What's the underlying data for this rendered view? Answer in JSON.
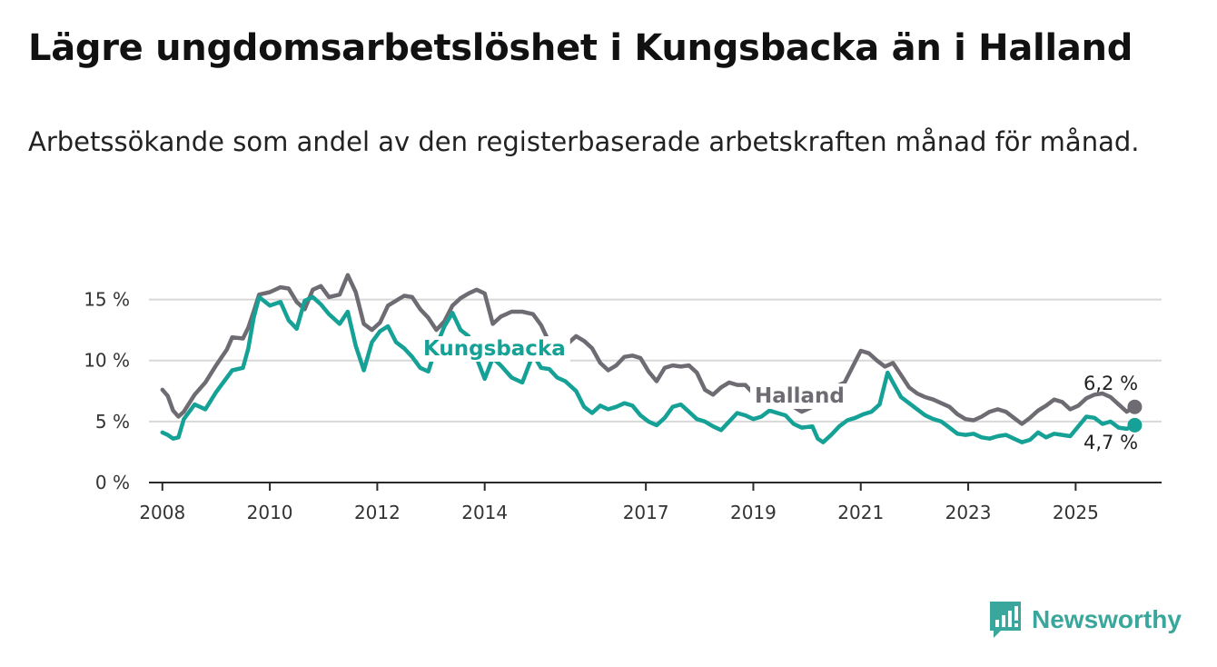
{
  "title": "Lägre ungdomsarbetslöshet i Kungsbacka än i Halland",
  "subtitle": "Arbetssökande som andel av den registerbaserade arbetskraften månad för månad.",
  "brand": {
    "name": "Newsworthy",
    "icon": "newsworthy-chart-icon",
    "color": "#3aa79c"
  },
  "chart_data": {
    "type": "line",
    "ylim": [
      0,
      17.5
    ],
    "y_ticks": [
      0,
      5,
      10,
      15
    ],
    "y_tick_labels": [
      "0 %",
      "5 %",
      "10 %",
      "15 %"
    ],
    "x_ticks": [
      2008,
      2010,
      2012,
      2014,
      2017,
      2019,
      2021,
      2023,
      2025
    ],
    "x_tick_labels": [
      "2008",
      "2010",
      "2012",
      "2014",
      "2017",
      "2019",
      "2021",
      "2023",
      "2025"
    ],
    "grid": true,
    "end_labels": {
      "halland": "6,2 %",
      "kungsbacka": "4,7 %"
    },
    "series": [
      {
        "name": "Halland",
        "color": "#6e6c72",
        "points": [
          [
            2008.0,
            7.6
          ],
          [
            2008.1,
            7.1
          ],
          [
            2008.2,
            5.9
          ],
          [
            2008.3,
            5.4
          ],
          [
            2008.4,
            5.8
          ],
          [
            2008.6,
            7.2
          ],
          [
            2008.8,
            8.2
          ],
          [
            2009.0,
            9.6
          ],
          [
            2009.2,
            10.9
          ],
          [
            2009.3,
            11.9
          ],
          [
            2009.5,
            11.8
          ],
          [
            2009.6,
            12.7
          ],
          [
            2009.7,
            14.0
          ],
          [
            2009.8,
            15.4
          ],
          [
            2010.0,
            15.6
          ],
          [
            2010.2,
            16.0
          ],
          [
            2010.35,
            15.9
          ],
          [
            2010.5,
            14.8
          ],
          [
            2010.65,
            14.2
          ],
          [
            2010.8,
            15.8
          ],
          [
            2010.95,
            16.1
          ],
          [
            2011.1,
            15.2
          ],
          [
            2011.3,
            15.4
          ],
          [
            2011.45,
            17.0
          ],
          [
            2011.6,
            15.6
          ],
          [
            2011.75,
            13.0
          ],
          [
            2011.9,
            12.5
          ],
          [
            2012.05,
            13.1
          ],
          [
            2012.2,
            14.5
          ],
          [
            2012.35,
            14.9
          ],
          [
            2012.5,
            15.3
          ],
          [
            2012.65,
            15.2
          ],
          [
            2012.8,
            14.2
          ],
          [
            2012.95,
            13.5
          ],
          [
            2013.1,
            12.5
          ],
          [
            2013.25,
            13.2
          ],
          [
            2013.4,
            14.5
          ],
          [
            2013.55,
            15.1
          ],
          [
            2013.7,
            15.5
          ],
          [
            2013.85,
            15.8
          ],
          [
            2014.0,
            15.5
          ],
          [
            2014.15,
            13.0
          ],
          [
            2014.3,
            13.6
          ],
          [
            2014.5,
            14.0
          ],
          [
            2014.7,
            14.0
          ],
          [
            2014.9,
            13.8
          ],
          [
            2015.05,
            12.9
          ],
          [
            2015.2,
            11.5
          ],
          [
            2015.35,
            10.8
          ],
          [
            2015.5,
            11.2
          ],
          [
            2015.7,
            12.0
          ],
          [
            2015.85,
            11.6
          ],
          [
            2016.0,
            11.0
          ],
          [
            2016.15,
            9.8
          ],
          [
            2016.3,
            9.2
          ],
          [
            2016.45,
            9.6
          ],
          [
            2016.6,
            10.3
          ],
          [
            2016.75,
            10.4
          ],
          [
            2016.9,
            10.2
          ],
          [
            2017.05,
            9.1
          ],
          [
            2017.2,
            8.3
          ],
          [
            2017.35,
            9.4
          ],
          [
            2017.5,
            9.6
          ],
          [
            2017.65,
            9.5
          ],
          [
            2017.8,
            9.6
          ],
          [
            2017.95,
            9.0
          ],
          [
            2018.1,
            7.6
          ],
          [
            2018.25,
            7.2
          ],
          [
            2018.4,
            7.8
          ],
          [
            2018.55,
            8.2
          ],
          [
            2018.7,
            8.0
          ],
          [
            2018.85,
            8.0
          ],
          [
            2019.0,
            7.3
          ],
          [
            2019.15,
            7.1
          ],
          [
            2019.3,
            6.6
          ],
          [
            2019.45,
            6.8
          ],
          [
            2019.6,
            6.5
          ],
          [
            2019.75,
            6.2
          ],
          [
            2019.9,
            5.8
          ],
          [
            2020.1,
            6.2
          ],
          [
            2020.3,
            7.0
          ],
          [
            2020.5,
            7.8
          ],
          [
            2020.7,
            8.2
          ],
          [
            2020.85,
            9.5
          ],
          [
            2021.0,
            10.8
          ],
          [
            2021.15,
            10.6
          ],
          [
            2021.3,
            10.0
          ],
          [
            2021.45,
            9.5
          ],
          [
            2021.6,
            9.8
          ],
          [
            2021.75,
            8.8
          ],
          [
            2021.9,
            7.8
          ],
          [
            2022.05,
            7.3
          ],
          [
            2022.2,
            7.0
          ],
          [
            2022.35,
            6.8
          ],
          [
            2022.5,
            6.5
          ],
          [
            2022.65,
            6.2
          ],
          [
            2022.8,
            5.6
          ],
          [
            2022.95,
            5.2
          ],
          [
            2023.1,
            5.1
          ],
          [
            2023.25,
            5.4
          ],
          [
            2023.4,
            5.8
          ],
          [
            2023.55,
            6.0
          ],
          [
            2023.7,
            5.8
          ],
          [
            2023.85,
            5.3
          ],
          [
            2024.0,
            4.8
          ],
          [
            2024.15,
            5.3
          ],
          [
            2024.3,
            5.9
          ],
          [
            2024.45,
            6.3
          ],
          [
            2024.6,
            6.8
          ],
          [
            2024.75,
            6.6
          ],
          [
            2024.9,
            6.0
          ],
          [
            2025.05,
            6.3
          ],
          [
            2025.2,
            6.9
          ],
          [
            2025.35,
            7.2
          ],
          [
            2025.5,
            7.3
          ],
          [
            2025.65,
            7.0
          ],
          [
            2025.8,
            6.4
          ],
          [
            2025.95,
            5.8
          ],
          [
            2026.1,
            6.2
          ]
        ]
      },
      {
        "name": "Kungsbacka",
        "color": "#15a196",
        "points": [
          [
            2008.0,
            4.1
          ],
          [
            2008.1,
            3.9
          ],
          [
            2008.2,
            3.6
          ],
          [
            2008.3,
            3.7
          ],
          [
            2008.4,
            5.2
          ],
          [
            2008.6,
            6.4
          ],
          [
            2008.8,
            6.0
          ],
          [
            2009.0,
            7.4
          ],
          [
            2009.2,
            8.6
          ],
          [
            2009.3,
            9.2
          ],
          [
            2009.5,
            9.4
          ],
          [
            2009.6,
            11.0
          ],
          [
            2009.7,
            13.5
          ],
          [
            2009.8,
            15.2
          ],
          [
            2010.0,
            14.5
          ],
          [
            2010.2,
            14.8
          ],
          [
            2010.35,
            13.3
          ],
          [
            2010.5,
            12.6
          ],
          [
            2010.65,
            14.9
          ],
          [
            2010.8,
            15.2
          ],
          [
            2010.95,
            14.6
          ],
          [
            2011.1,
            13.8
          ],
          [
            2011.3,
            13.0
          ],
          [
            2011.45,
            14.0
          ],
          [
            2011.6,
            11.2
          ],
          [
            2011.75,
            9.2
          ],
          [
            2011.9,
            11.5
          ],
          [
            2012.05,
            12.4
          ],
          [
            2012.2,
            12.8
          ],
          [
            2012.35,
            11.5
          ],
          [
            2012.5,
            11.0
          ],
          [
            2012.65,
            10.3
          ],
          [
            2012.8,
            9.4
          ],
          [
            2012.95,
            9.1
          ],
          [
            2013.1,
            11.2
          ],
          [
            2013.25,
            12.8
          ],
          [
            2013.4,
            13.9
          ],
          [
            2013.55,
            12.5
          ],
          [
            2013.7,
            12.0
          ],
          [
            2013.85,
            10.2
          ],
          [
            2014.0,
            8.5
          ],
          [
            2014.15,
            10.2
          ],
          [
            2014.3,
            9.6
          ],
          [
            2014.5,
            8.6
          ],
          [
            2014.7,
            8.2
          ],
          [
            2014.9,
            10.5
          ],
          [
            2015.05,
            9.4
          ],
          [
            2015.2,
            9.3
          ],
          [
            2015.35,
            8.6
          ],
          [
            2015.5,
            8.3
          ],
          [
            2015.7,
            7.5
          ],
          [
            2015.85,
            6.2
          ],
          [
            2016.0,
            5.7
          ],
          [
            2016.15,
            6.3
          ],
          [
            2016.3,
            6.0
          ],
          [
            2016.45,
            6.2
          ],
          [
            2016.6,
            6.5
          ],
          [
            2016.75,
            6.3
          ],
          [
            2016.9,
            5.5
          ],
          [
            2017.05,
            5.0
          ],
          [
            2017.2,
            4.7
          ],
          [
            2017.35,
            5.3
          ],
          [
            2017.5,
            6.2
          ],
          [
            2017.65,
            6.4
          ],
          [
            2017.8,
            5.8
          ],
          [
            2017.95,
            5.2
          ],
          [
            2018.1,
            5.0
          ],
          [
            2018.25,
            4.6
          ],
          [
            2018.4,
            4.3
          ],
          [
            2018.55,
            5.0
          ],
          [
            2018.7,
            5.7
          ],
          [
            2018.85,
            5.5
          ],
          [
            2019.0,
            5.2
          ],
          [
            2019.15,
            5.4
          ],
          [
            2019.3,
            5.9
          ],
          [
            2019.45,
            5.7
          ],
          [
            2019.6,
            5.5
          ],
          [
            2019.75,
            4.8
          ],
          [
            2019.9,
            4.5
          ],
          [
            2020.1,
            4.6
          ],
          [
            2020.2,
            3.6
          ],
          [
            2020.3,
            3.3
          ],
          [
            2020.45,
            3.9
          ],
          [
            2020.6,
            4.6
          ],
          [
            2020.75,
            5.1
          ],
          [
            2020.9,
            5.3
          ],
          [
            2021.05,
            5.6
          ],
          [
            2021.2,
            5.8
          ],
          [
            2021.35,
            6.4
          ],
          [
            2021.5,
            9.0
          ],
          [
            2021.6,
            8.2
          ],
          [
            2021.75,
            7.0
          ],
          [
            2021.9,
            6.5
          ],
          [
            2022.05,
            6.0
          ],
          [
            2022.2,
            5.5
          ],
          [
            2022.35,
            5.2
          ],
          [
            2022.5,
            5.0
          ],
          [
            2022.65,
            4.5
          ],
          [
            2022.8,
            4.0
          ],
          [
            2022.95,
            3.9
          ],
          [
            2023.1,
            4.0
          ],
          [
            2023.25,
            3.7
          ],
          [
            2023.4,
            3.6
          ],
          [
            2023.55,
            3.8
          ],
          [
            2023.7,
            3.9
          ],
          [
            2023.85,
            3.6
          ],
          [
            2024.0,
            3.3
          ],
          [
            2024.15,
            3.5
          ],
          [
            2024.3,
            4.1
          ],
          [
            2024.45,
            3.7
          ],
          [
            2024.6,
            4.0
          ],
          [
            2024.75,
            3.9
          ],
          [
            2024.9,
            3.8
          ],
          [
            2025.05,
            4.6
          ],
          [
            2025.2,
            5.4
          ],
          [
            2025.35,
            5.3
          ],
          [
            2025.5,
            4.8
          ],
          [
            2025.65,
            5.0
          ],
          [
            2025.8,
            4.5
          ],
          [
            2025.95,
            4.4
          ],
          [
            2026.1,
            4.7
          ]
        ]
      }
    ]
  }
}
